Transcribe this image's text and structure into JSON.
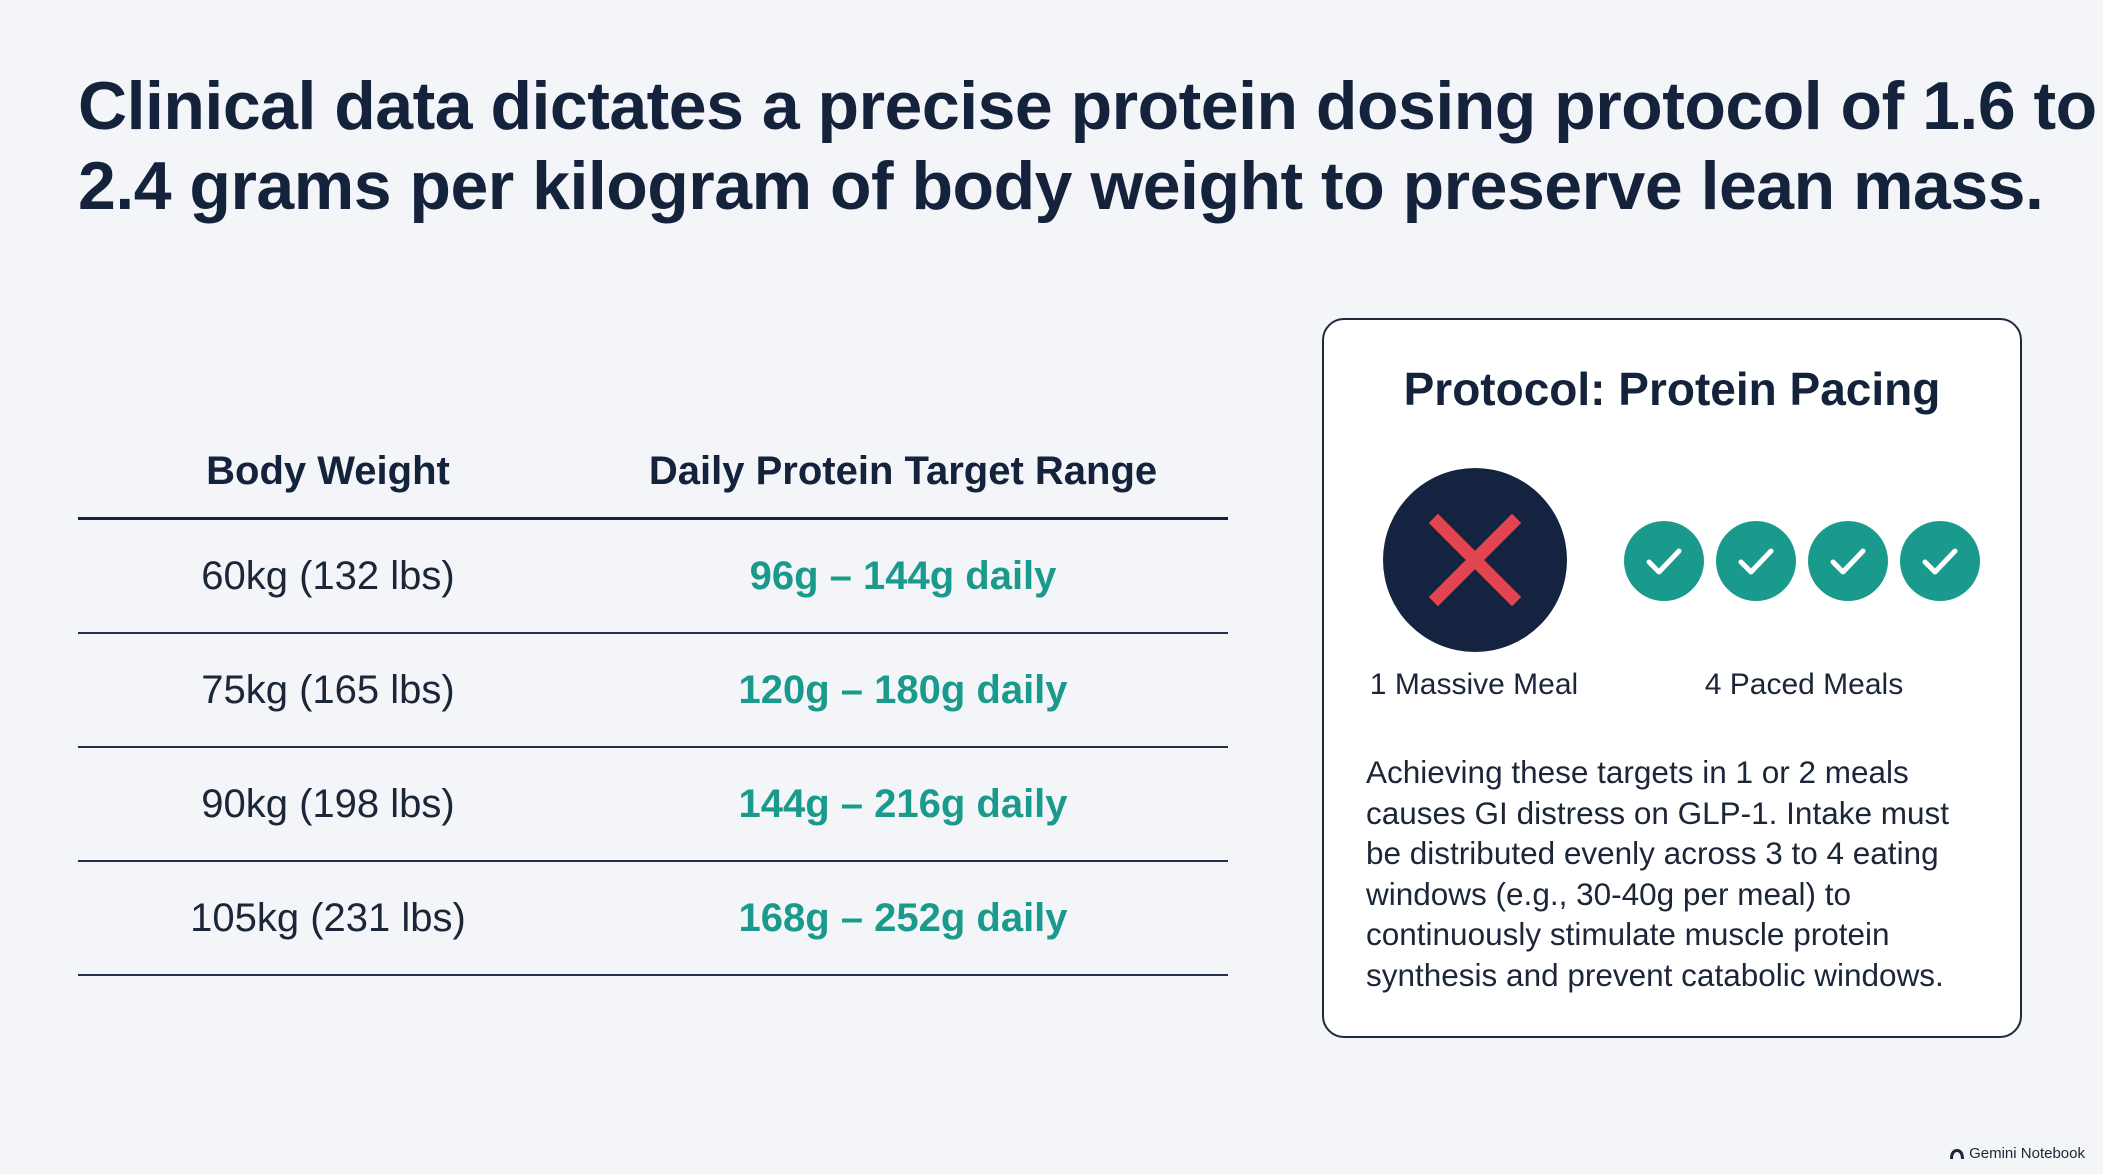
{
  "headline": {
    "line1": "Clinical data dictates a precise protein dosing protocol of 1.6 to",
    "line2": "2.4 grams per kilogram of body weight to preserve lean mass."
  },
  "table": {
    "headers": [
      "Body Weight",
      "Daily Protein Target Range"
    ],
    "rows": [
      {
        "weight": "60kg (132 lbs)",
        "range": "96g – 144g daily"
      },
      {
        "weight": "75kg (165 lbs)",
        "range": "120g – 180g daily"
      },
      {
        "weight": "90kg (198 lbs)",
        "range": "144g – 216g daily"
      },
      {
        "weight": "105kg (231 lbs)",
        "range": "168g – 252g daily"
      }
    ]
  },
  "card": {
    "title": "Protocol: Protein Pacing",
    "left_label": "1 Massive Meal",
    "right_label": "4 Paced Meals",
    "body_lines": [
      "Achieving these targets in 1 or 2 meals",
      "causes GI distress on GLP-1. Intake must",
      "be distributed evenly across 3 to 4 eating",
      "windows (e.g., 30-40g per meal) to",
      "continuously stimulate muscle protein",
      "synthesis and prevent catabolic windows."
    ],
    "icons": {
      "left": "x-mark-icon",
      "right": [
        "check-icon",
        "check-icon",
        "check-icon",
        "check-icon"
      ]
    }
  },
  "watermark": "Gemini Notebook",
  "colors": {
    "background": "#f3f5f8",
    "text": "#14233b",
    "accent_teal": "#1a9a8c",
    "x_red": "#e2454f",
    "dark_navy": "#132340"
  }
}
